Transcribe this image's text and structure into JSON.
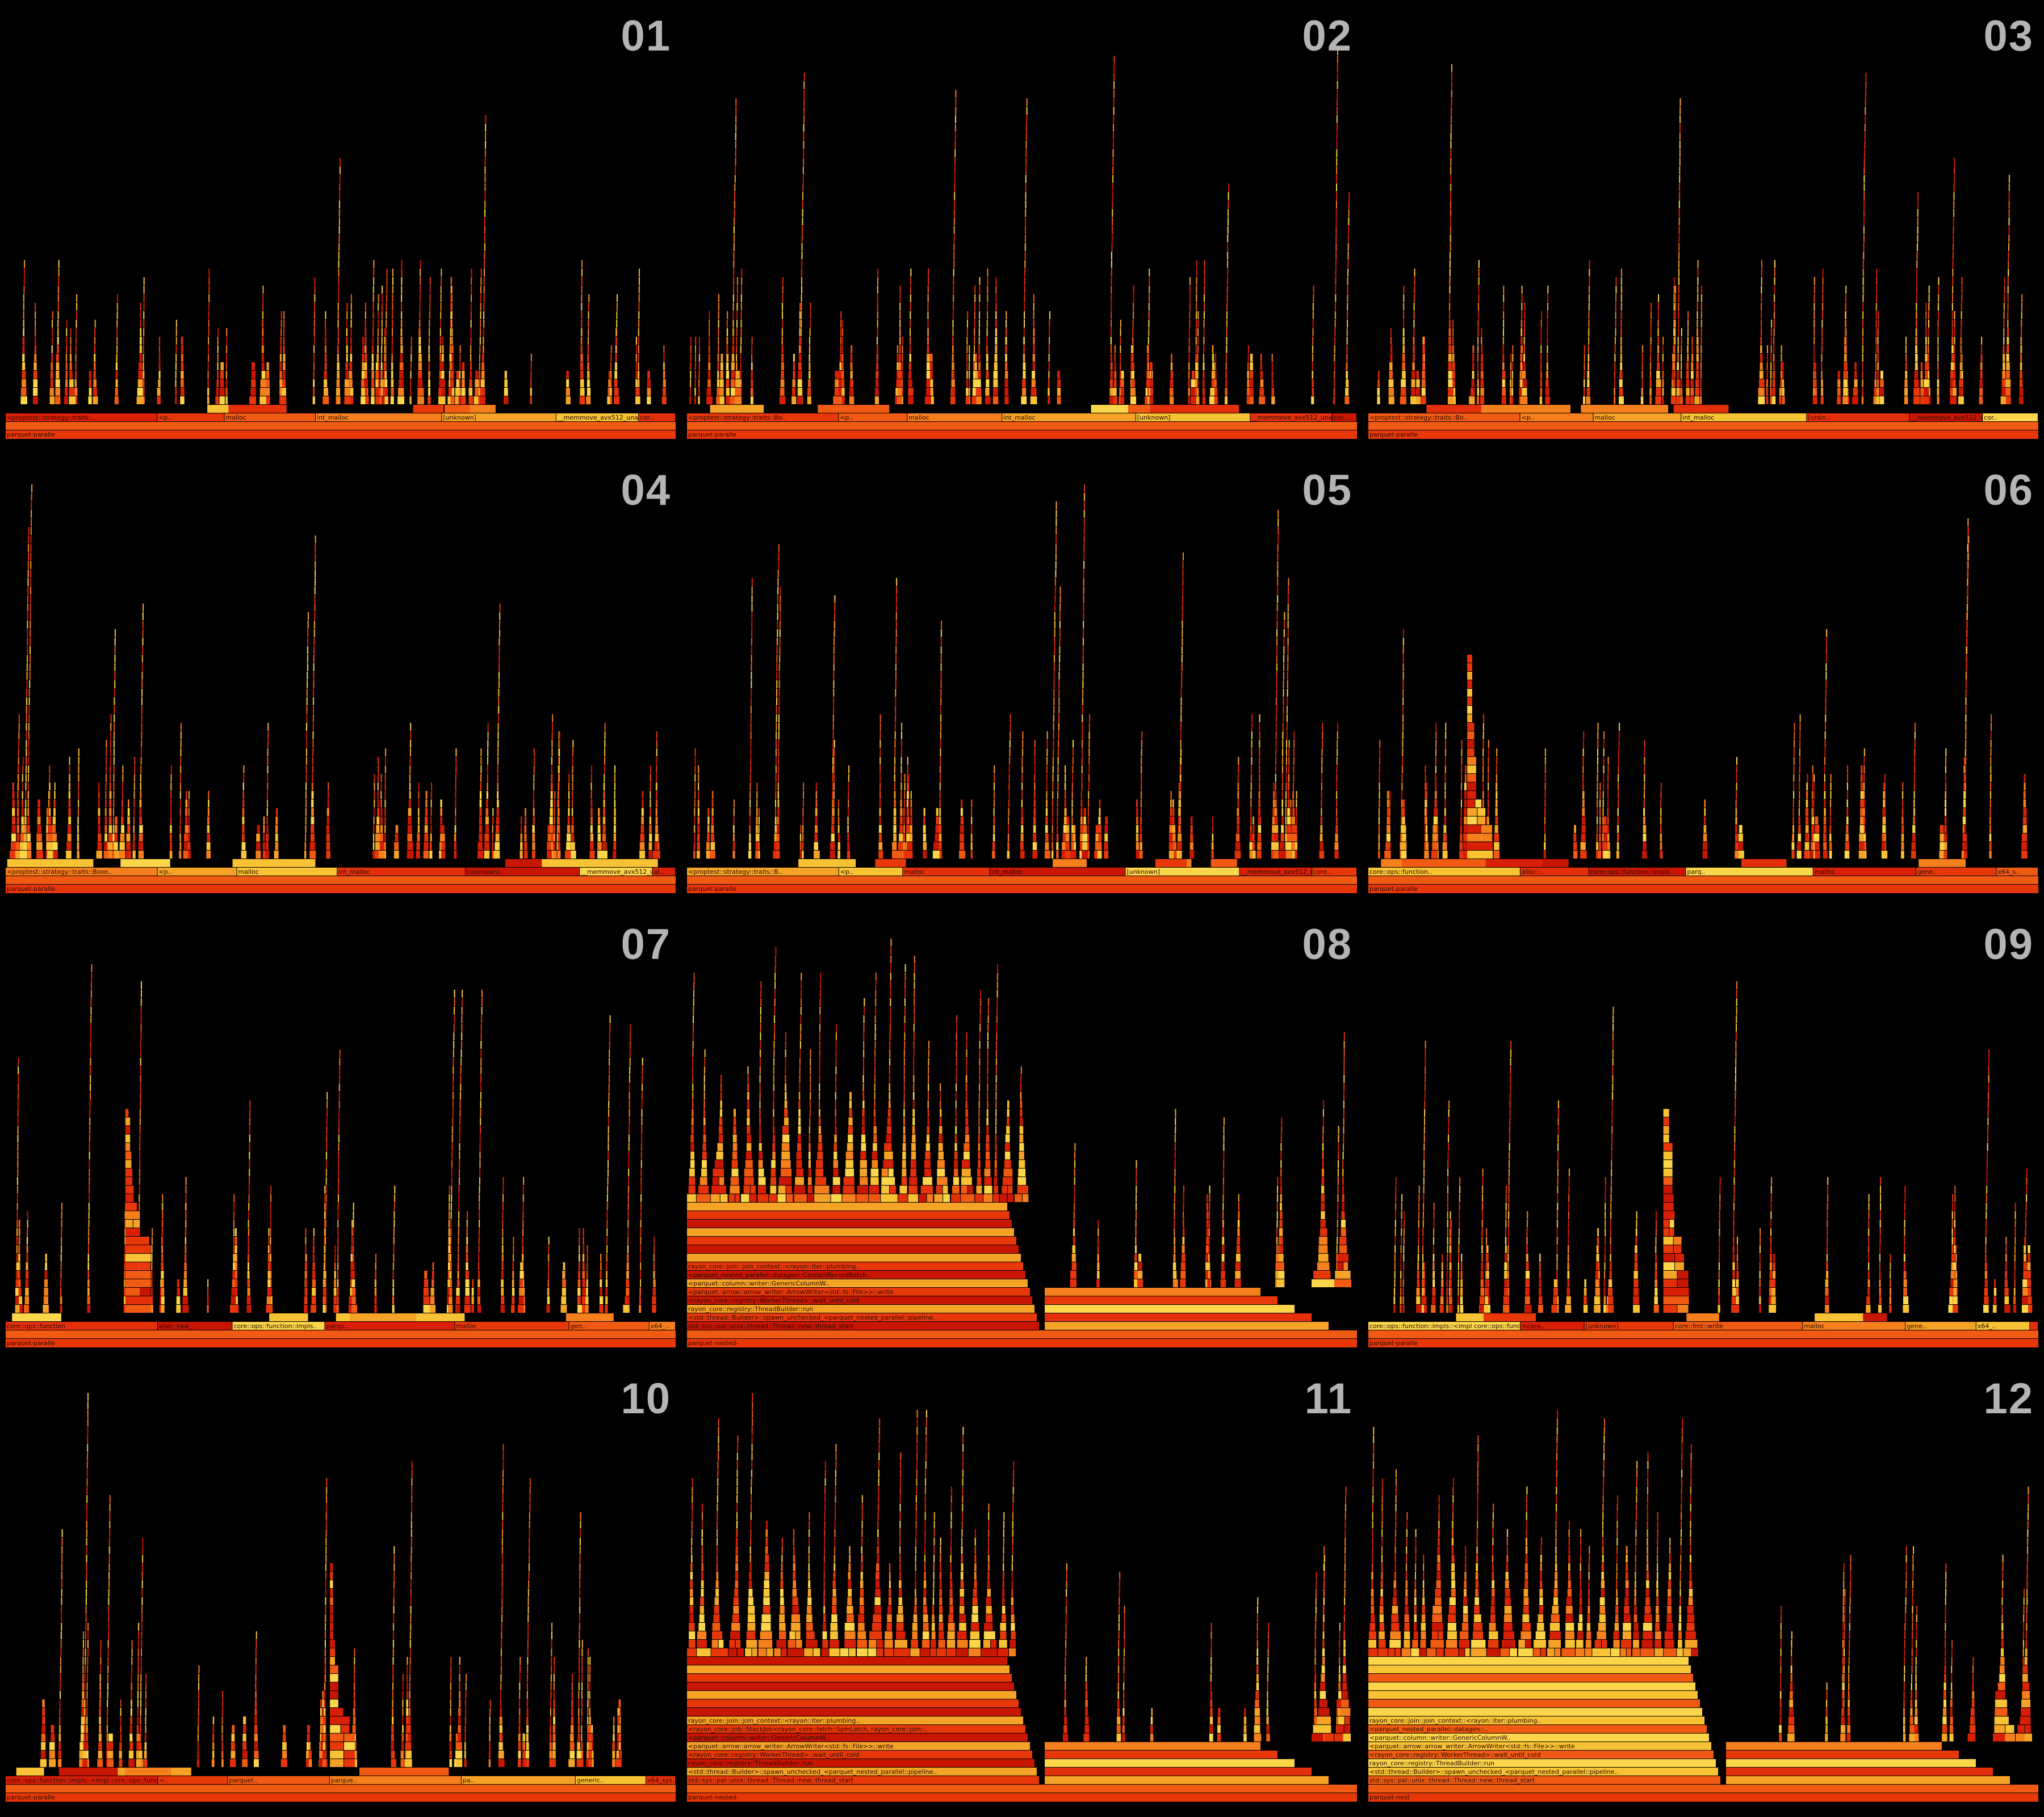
{
  "panels": [
    {
      "number": "01",
      "kind": "a",
      "seed": 11,
      "root": "parquet-paralle",
      "labels": [
        "<proptest::strategy::traits:...",
        "<p..",
        "malloc",
        "int_malloc",
        "[unknown]",
        "__memmove_avx512_unal..",
        "cor..",
        "<a.."
      ]
    },
    {
      "number": "02",
      "kind": "a",
      "seed": 23,
      "root": "parquet-paralle",
      "labels": [
        "<proptest::strategy::traits::Bo..",
        "<p..",
        "malloc",
        "int_malloc",
        "[unknown]",
        "__memmove_avx512_unal..",
        "cor..",
        "memmo.."
      ]
    },
    {
      "number": "03",
      "kind": "a",
      "seed": 37,
      "root": "parquet-paralle",
      "labels": [
        "<proptest::strategy::traits::Bo..",
        "<p..",
        "malloc",
        "int_malloc",
        "[unkn..",
        "__memmove_avx512_unal..",
        "cor..",
        "memmo.."
      ]
    },
    {
      "number": "04",
      "kind": "a",
      "seed": 41,
      "root": "parquet-paralle",
      "labels": [
        "<proptest::strategy::traits::Boxe..",
        "<p..",
        "malloc",
        "int_malloc",
        "[unknown]",
        "__memmove_avx512_unali..",
        "al..",
        "memmo.."
      ]
    },
    {
      "number": "05",
      "kind": "a",
      "seed": 53,
      "root": "parquet-paralle",
      "labels": [
        "<proptest::strategy::traits::B..",
        "<p..",
        "malloc",
        "int_malloc",
        "[unknown]",
        "__memmove_avx512_unalig..",
        "core..",
        "mem.."
      ]
    },
    {
      "number": "06",
      "kind": "b",
      "seed": 67,
      "root": "parquet-paralle",
      "labels": [
        "core::ops::function..",
        "alloc::..",
        "core::ops::function::impls..",
        "parq..",
        "malloc",
        "gene..",
        "x64_s..",
        "std::.."
      ]
    },
    {
      "number": "07",
      "kind": "b",
      "seed": 71,
      "root": "parquet-paralle",
      "labels": [
        "core::ops::function",
        "alloc::raw_..",
        "core::ops::function::impls..",
        "parqu..",
        "malloc",
        "gen..",
        "x64_..",
        "std::.."
      ]
    },
    {
      "number": "08",
      "kind": "c",
      "seed": 83,
      "root": "parquet-nested-",
      "labels": [
        "std::sys::pal::unix::thread::Thread::new::thread_start",
        "<std::thread::Builder>::spawn_unchecked_<parquet_nested_parallel::pipeline..",
        "rayon_core::registry::ThreadBuilder::run",
        "<rayon_core::registry::WorkerThread>::wait_until_cold",
        "<parquet::arrow::arrow_writer::ArrowWriter<std::fs::File>>::write",
        "<parquet::column::writer::GenericColumnW..",
        "<parquet_nested_parallel::datagen::ContactRecordBatch..",
        "rayon_core::join::join_context::<rayon::iter::plumbing.."
      ]
    },
    {
      "number": "09",
      "kind": "b",
      "seed": 97,
      "root": "parquet-paralle",
      "labels": [
        "core::ops::function::impls::<impl core::ops::function..",
        "<core..",
        "[unknown]",
        "core::fmt::write",
        "malloc",
        "gene..",
        "x64_..",
        "std::.."
      ]
    },
    {
      "number": "10",
      "kind": "d",
      "seed": 101,
      "root": "parquet-paralle",
      "labels": [
        "core::ops::function::impls::<impl core::ops::function..",
        "<..",
        "parquet..",
        "parque..",
        "pa..",
        "generic..",
        "x64_sys..",
        "vfs_write"
      ]
    },
    {
      "number": "11",
      "kind": "c",
      "seed": 113,
      "root": "parquet-nested-",
      "labels": [
        "std::sys::pal::unix::thread::Thread::new::thread_start",
        "<std::thread::Builder>::spawn_unchecked_<parquet_nested_parallel::pipeline..",
        "rayon_core::registry::ThreadBuilder::run",
        "<rayon_core::registry::WorkerThread>::wait_until_cold",
        "<parquet::arrow::arrow_writer::ArrowWriter<std::fs::File>>::write",
        "<parquet::column::writer::GenericColumnW..",
        "<rayon_core::job::StackJob<rayon_core::latch::SpinLatch, rayon_core::join::..",
        "rayon_core::join::join_context::<rayon::iter::plumbing.."
      ]
    },
    {
      "number": "12",
      "kind": "c",
      "seed": 127,
      "root": "parquet-nest",
      "labels": [
        "std::sys::pal::unix::thread::Thread::new::thread_start",
        "<std::thread::Builder>::spawn_unchecked_<parquet_nested_parallel::pipeline..",
        "rayon_core::registry::ThreadBuilder::run",
        "<rayon_core::registry::WorkerThread>::wait_until_cold",
        "<parquet::arrow::arrow_writer::ArrowWriter<std::fs::File>>::write",
        "<parquet::column::writer::GenericColumnW..",
        "<parquet_nested_parallel::datagen::..",
        "rayon_core::join::join_context::<rayon::iter::plumbing.."
      ]
    }
  ],
  "colors": {
    "background": "#000000",
    "panel_number": "#b4b4b4",
    "palette": [
      "#d91f05",
      "#e8380a",
      "#f05a12",
      "#f57f1c",
      "#f5a327",
      "#f7c233",
      "#e3300b",
      "#c81603",
      "#fbd54a"
    ]
  }
}
